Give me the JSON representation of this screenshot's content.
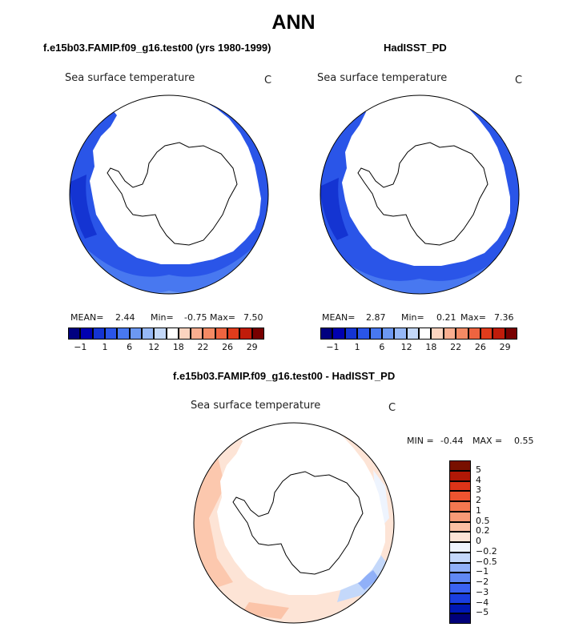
{
  "title": "ANN",
  "panels": [
    {
      "title": "f.e15b03.FAMIP.f09_g16.test00 (yrs 1980-1999)",
      "variable": "Sea surface temperature",
      "units": "C",
      "stats": {
        "mean_label": "MEAN=",
        "mean": "2.44",
        "min_label": "Min=",
        "min": "-0.75",
        "max_label": "Max=",
        "max": "7.50"
      }
    },
    {
      "title": "HadISST_PD",
      "variable": "Sea surface temperature",
      "units": "C",
      "stats": {
        "mean_label": "MEAN=",
        "mean": "2.87",
        "min_label": "Min=",
        "min": "0.21",
        "max_label": "Max=",
        "max": "7.36"
      }
    }
  ],
  "abs_colorbar": {
    "colors": [
      "#000080",
      "#0000b0",
      "#1434d2",
      "#2a55e8",
      "#4878f0",
      "#6c98f2",
      "#96b8f6",
      "#c4d8f8",
      "#ffffff",
      "#fcd4c0",
      "#faae90",
      "#f48a64",
      "#ee6440",
      "#e03c1c",
      "#c01c0a",
      "#780000"
    ],
    "tick_labels": [
      "-1",
      "1",
      "6",
      "12",
      "18",
      "22",
      "26",
      "29"
    ]
  },
  "diff_panel": {
    "title": "f.e15b03.FAMIP.f09_g16.test00 - HadISST_PD",
    "variable": "Sea surface temperature",
    "units": "C",
    "min_label": "MIN =",
    "min": "-0.44",
    "max_label": "MAX =",
    "max": "0.55"
  },
  "diff_colorbar": {
    "colors": [
      "#00007a",
      "#0018b4",
      "#1a3ee0",
      "#3a62f2",
      "#6088f4",
      "#90b0f8",
      "#c4d8fa",
      "#eef4fe",
      "#fde4d6",
      "#fbc0a4",
      "#f89a76",
      "#f47850",
      "#ee5430",
      "#dc3418",
      "#b01806",
      "#781000"
    ],
    "labels_top_to_bottom": [
      "5",
      "4",
      "3",
      "2",
      "1",
      "0.5",
      "0.2",
      "0",
      "-0.2",
      "-0.5",
      "-1",
      "-2",
      "-3",
      "-4",
      "-5"
    ]
  }
}
